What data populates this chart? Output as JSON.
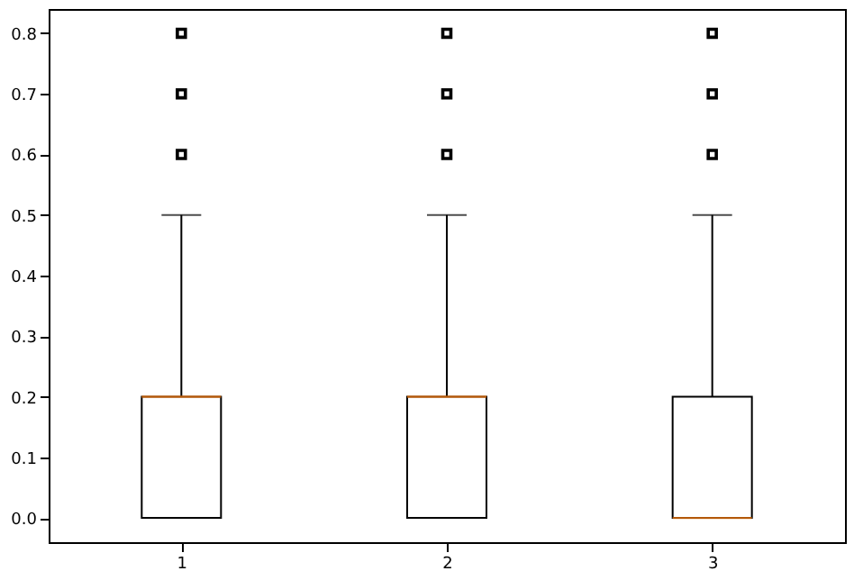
{
  "chart_data": {
    "type": "box",
    "categories": [
      "1",
      "2",
      "3"
    ],
    "boxes": [
      {
        "low": 0,
        "q1": 0,
        "median": 0.2,
        "q3": 0.2,
        "high": 0.5,
        "outliers": [
          0.6,
          0.7,
          0.8
        ]
      },
      {
        "low": 0,
        "q1": 0,
        "median": 0.2,
        "q3": 0.2,
        "high": 0.5,
        "outliers": [
          0.6,
          0.7,
          0.8
        ]
      },
      {
        "low": 0,
        "q1": 0,
        "median": 0,
        "q3": 0.2,
        "high": 0.5,
        "outliers": [
          0.6,
          0.7,
          0.8
        ]
      }
    ],
    "ylim": [
      -0.04,
      0.84
    ],
    "yticks": [
      {
        "value": 0,
        "label": "0.0"
      },
      {
        "value": 0.1,
        "label": "0.1"
      },
      {
        "value": 0.2,
        "label": "0.2"
      },
      {
        "value": 0.3,
        "label": "0.3"
      },
      {
        "value": 0.4,
        "label": "0.4"
      },
      {
        "value": 0.5,
        "label": "0.5"
      },
      {
        "value": 0.6,
        "label": "0.6"
      },
      {
        "value": 0.7,
        "label": "0.7"
      },
      {
        "value": 0.8,
        "label": "0.8"
      }
    ],
    "grid": false
  }
}
